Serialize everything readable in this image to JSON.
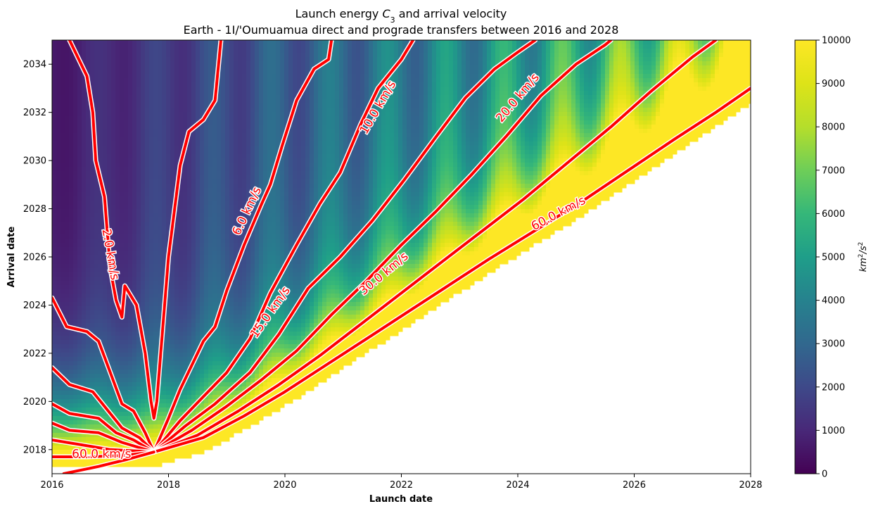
{
  "chart_data": {
    "type": "heatmap",
    "title_line1": "Launch energy C3 and arrival velocity",
    "title_prefix": "Launch energy ",
    "title_var": "C",
    "title_sub": "3",
    "title_suffix": " and arrival velocity",
    "title_line2": "Earth - 1I/'Oumuamua direct and prograde transfers between 2016 and 2028",
    "xlabel": "Launch date",
    "ylabel": "Arrival date",
    "xlim": [
      2016,
      2028
    ],
    "ylim": [
      2017,
      2035
    ],
    "x_ticks": [
      2016,
      2018,
      2020,
      2022,
      2024,
      2026,
      2028
    ],
    "y_ticks": [
      2018,
      2020,
      2022,
      2024,
      2026,
      2028,
      2030,
      2032,
      2034
    ],
    "colorbar": {
      "label": "km²/s²",
      "label_base": "km",
      "label_exp1": "2",
      "label_mid": "/s",
      "label_exp2": "2",
      "range": [
        0,
        10000
      ],
      "ticks": [
        0,
        1000,
        2000,
        3000,
        4000,
        5000,
        6000,
        7000,
        8000,
        9000,
        10000
      ],
      "colormap": "viridis"
    },
    "heatmap_description": "Launch energy C3 (km2/s2) over launch/arrival dates; vertical periodic bands, low values (dark purple) on the left rising to green/yellow near the lower-right feasibility boundary; region below the boundary is blank.",
    "contour_color": "#ff0000",
    "contours": [
      {
        "label": "2.0 km/s",
        "points": [
          [
            2016.3,
            2035
          ],
          [
            2016.6,
            2033.5
          ],
          [
            2016.7,
            2032
          ],
          [
            2016.75,
            2030
          ],
          [
            2016.9,
            2028.5
          ],
          [
            2016.95,
            2027
          ],
          [
            2017.0,
            2025.5
          ],
          [
            2017.1,
            2024.2
          ],
          [
            2017.2,
            2023.5
          ],
          [
            2017.25,
            2024.8
          ],
          [
            2017.45,
            2024
          ],
          [
            2017.6,
            2022
          ],
          [
            2017.7,
            2020
          ],
          [
            2017.75,
            2019.3
          ],
          [
            2017.8,
            2020
          ],
          [
            2017.9,
            2023
          ],
          [
            2018.0,
            2026
          ],
          [
            2018.2,
            2029.8
          ],
          [
            2018.35,
            2031.2
          ],
          [
            2018.6,
            2031.7
          ],
          [
            2018.8,
            2032.5
          ],
          [
            2018.9,
            2035
          ]
        ]
      },
      {
        "label": "6.0 km/s",
        "points": [
          [
            2017.75,
            2017.9
          ],
          [
            2018.0,
            2019.3
          ],
          [
            2018.2,
            2020.5
          ],
          [
            2018.4,
            2021.5
          ],
          [
            2018.6,
            2022.5
          ],
          [
            2018.8,
            2023.1
          ],
          [
            2019.0,
            2024.6
          ],
          [
            2019.3,
            2026.5
          ],
          [
            2019.6,
            2028.2
          ],
          [
            2019.75,
            2029
          ],
          [
            2019.95,
            2030.6
          ],
          [
            2020.2,
            2032.5
          ],
          [
            2020.5,
            2033.8
          ],
          [
            2020.75,
            2034.2
          ],
          [
            2020.8,
            2035
          ]
        ]
      },
      {
        "label": "10.0 km/s",
        "points": [
          [
            2017.75,
            2017.9
          ],
          [
            2018.2,
            2019.2
          ],
          [
            2018.6,
            2020.2
          ],
          [
            2019.0,
            2021.2
          ],
          [
            2019.4,
            2022.6
          ],
          [
            2019.75,
            2024.5
          ],
          [
            2020.2,
            2026.5
          ],
          [
            2020.6,
            2028.2
          ],
          [
            2020.95,
            2029.5
          ],
          [
            2021.3,
            2031.5
          ],
          [
            2021.6,
            2033
          ],
          [
            2022.0,
            2034.2
          ],
          [
            2022.2,
            2035
          ]
        ]
      },
      {
        "label": "15.0 km/s",
        "points": [
          [
            2017.75,
            2017.9
          ],
          [
            2018.3,
            2019.0
          ],
          [
            2018.8,
            2019.9
          ],
          [
            2019.4,
            2021.2
          ],
          [
            2019.9,
            2022.8
          ],
          [
            2020.4,
            2024.7
          ],
          [
            2020.95,
            2026
          ],
          [
            2021.5,
            2027.5
          ],
          [
            2022.05,
            2029.2
          ],
          [
            2022.6,
            2031
          ],
          [
            2023.1,
            2032.6
          ],
          [
            2023.6,
            2033.8
          ],
          [
            2024.0,
            2034.5
          ],
          [
            2024.3,
            2035
          ]
        ]
      },
      {
        "label": "20.0 km/s",
        "points": [
          [
            2017.75,
            2017.9
          ],
          [
            2018.4,
            2018.8
          ],
          [
            2019.0,
            2019.8
          ],
          [
            2019.6,
            2020.9
          ],
          [
            2020.2,
            2022.1
          ],
          [
            2020.8,
            2023.6
          ],
          [
            2021.4,
            2025
          ],
          [
            2022.0,
            2026.5
          ],
          [
            2022.6,
            2027.9
          ],
          [
            2023.2,
            2029.4
          ],
          [
            2023.8,
            2031
          ],
          [
            2024.4,
            2032.7
          ],
          [
            2025.0,
            2034
          ],
          [
            2025.5,
            2034.8
          ],
          [
            2025.6,
            2035
          ]
        ]
      },
      {
        "label": "30.0 km/s",
        "points": [
          [
            2017.75,
            2017.9
          ],
          [
            2018.5,
            2018.6
          ],
          [
            2019.2,
            2019.6
          ],
          [
            2019.9,
            2020.7
          ],
          [
            2020.6,
            2021.9
          ],
          [
            2021.3,
            2023.2
          ],
          [
            2022.0,
            2024.5
          ],
          [
            2022.7,
            2025.8
          ],
          [
            2023.4,
            2027.1
          ],
          [
            2024.1,
            2028.4
          ],
          [
            2024.8,
            2029.8
          ],
          [
            2025.6,
            2031.4
          ],
          [
            2026.3,
            2032.9
          ],
          [
            2027.0,
            2034.3
          ],
          [
            2027.4,
            2035
          ]
        ]
      },
      {
        "label": "60.0 km/s",
        "points": [
          [
            2017.75,
            2017.9
          ],
          [
            2018.6,
            2018.5
          ],
          [
            2019.3,
            2019.4
          ],
          [
            2020.0,
            2020.4
          ],
          [
            2020.7,
            2021.5
          ],
          [
            2021.4,
            2022.6
          ],
          [
            2022.1,
            2023.7
          ],
          [
            2022.8,
            2024.8
          ],
          [
            2023.5,
            2025.9
          ],
          [
            2024.3,
            2027.1
          ],
          [
            2025.1,
            2028.3
          ],
          [
            2025.9,
            2029.6
          ],
          [
            2026.7,
            2030.9
          ],
          [
            2027.4,
            2032
          ],
          [
            2028.0,
            2033
          ]
        ]
      },
      {
        "label": "",
        "points": [
          [
            2016,
            2024.3
          ],
          [
            2016.25,
            2023.1
          ],
          [
            2016.6,
            2022.9
          ],
          [
            2016.8,
            2022.5
          ],
          [
            2017.0,
            2021.2
          ],
          [
            2017.2,
            2019.9
          ],
          [
            2017.4,
            2019.6
          ],
          [
            2017.6,
            2018.7
          ],
          [
            2017.75,
            2017.9
          ]
        ]
      },
      {
        "label": "",
        "points": [
          [
            2016,
            2021.4
          ],
          [
            2016.3,
            2020.7
          ],
          [
            2016.7,
            2020.4
          ],
          [
            2016.9,
            2019.8
          ],
          [
            2017.2,
            2018.9
          ],
          [
            2017.5,
            2018.5
          ],
          [
            2017.75,
            2017.9
          ]
        ]
      },
      {
        "label": "",
        "points": [
          [
            2016,
            2019.9
          ],
          [
            2016.3,
            2019.5
          ],
          [
            2016.8,
            2019.3
          ],
          [
            2017.1,
            2018.7
          ],
          [
            2017.4,
            2018.4
          ],
          [
            2017.75,
            2017.9
          ]
        ]
      },
      {
        "label": "",
        "points": [
          [
            2016,
            2019.1
          ],
          [
            2016.3,
            2018.8
          ],
          [
            2016.8,
            2018.7
          ],
          [
            2017.2,
            2018.3
          ],
          [
            2017.75,
            2017.9
          ]
        ]
      },
      {
        "label": "",
        "points": [
          [
            2016,
            2018.4
          ],
          [
            2016.5,
            2018.2
          ],
          [
            2017.0,
            2018.0
          ],
          [
            2017.4,
            2017.95
          ],
          [
            2017.75,
            2017.9
          ]
        ]
      },
      {
        "label": "",
        "points": [
          [
            2016,
            2017.7
          ],
          [
            2016.6,
            2017.7
          ],
          [
            2017.2,
            2017.75
          ],
          [
            2017.75,
            2017.9
          ]
        ]
      },
      {
        "label": "",
        "points": [
          [
            2016.2,
            2017.0
          ],
          [
            2016.8,
            2017.3
          ],
          [
            2017.3,
            2017.6
          ],
          [
            2017.75,
            2017.9
          ]
        ]
      }
    ],
    "contour_labels": [
      {
        "text": "2.0 km/s",
        "x": 2017.0,
        "y": 2026.1,
        "angle": 80
      },
      {
        "text": "6.0 km/s",
        "x": 2019.35,
        "y": 2027.9,
        "angle": -65
      },
      {
        "text": "10.0 km/s",
        "x": 2021.6,
        "y": 2032.2,
        "angle": -60
      },
      {
        "text": "15.0 km/s",
        "x": 2019.75,
        "y": 2023.7,
        "angle": -55
      },
      {
        "text": "20.0 km/s",
        "x": 2024.0,
        "y": 2032.6,
        "angle": -50
      },
      {
        "text": "30.0 km/s",
        "x": 2021.7,
        "y": 2025.3,
        "angle": -40
      },
      {
        "text": "60.0 km/s",
        "x": 2024.7,
        "y": 2027.8,
        "angle": -28
      },
      {
        "text": "60.0 km/s",
        "x": 2016.85,
        "y": 2017.8,
        "angle": 0
      }
    ]
  }
}
